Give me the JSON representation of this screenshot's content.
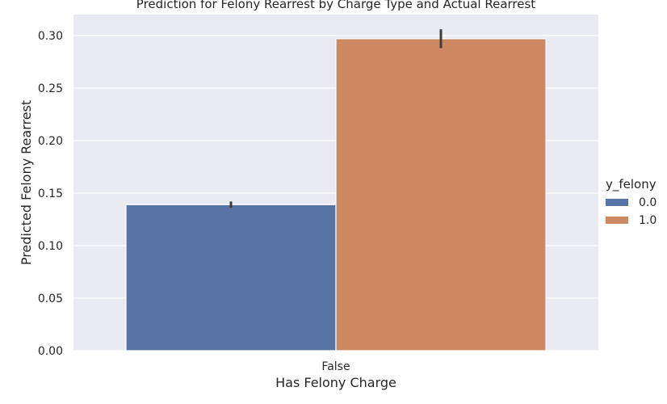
{
  "chart_data": {
    "type": "bar",
    "title": "Prediction for Felony Rearrest by Charge Type and Actual Rearrest",
    "xlabel": "Has Felony Charge",
    "ylabel": "Predicted Felony Rearrest",
    "categories": [
      "False"
    ],
    "ylim": [
      0,
      0.32
    ],
    "yticks": [
      0.0,
      0.05,
      0.1,
      0.15,
      0.2,
      0.25,
      0.3
    ],
    "ytick_labels": [
      "0.00",
      "0.05",
      "0.10",
      "0.15",
      "0.20",
      "0.25",
      "0.30"
    ],
    "grid": true,
    "legend": {
      "title": "y_felony",
      "placement": "right"
    },
    "series": [
      {
        "name": "0.0",
        "color": "#5874a6",
        "values": [
          0.139
        ],
        "ci_low": [
          0.136
        ],
        "ci_high": [
          0.142
        ]
      },
      {
        "name": "1.0",
        "color": "#cd8962",
        "values": [
          0.297
        ],
        "ci_low": [
          0.288
        ],
        "ci_high": [
          0.306
        ]
      }
    ]
  }
}
